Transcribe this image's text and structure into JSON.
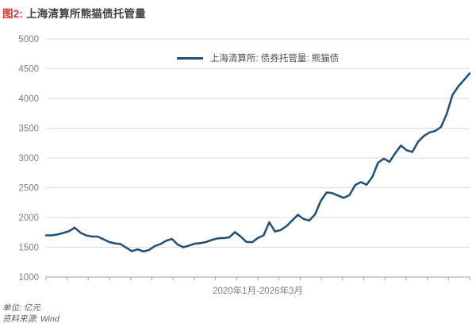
{
  "title": {
    "prefix": "图2:",
    "text": "上海清算所熊猫债托管量"
  },
  "legend": {
    "label": "上海清算所: 债券托管量: 熊猫债"
  },
  "footer": {
    "unit": "单位: 亿元",
    "source": "资料来源: Wind"
  },
  "colors": {
    "line": "#1F4E79",
    "title_accent": "#CD3C32",
    "title_text": "#404040",
    "grid": "#DBDBDB",
    "axis": "#9E9E9E",
    "tick_label": "#7F7F7F",
    "footer_text": "#595959"
  },
  "chart_data": {
    "type": "line",
    "title": "上海清算所熊猫债托管量",
    "series_name": "上海清算所: 债券托管量: 熊猫债",
    "x_range_label": "2020年1月-2026年3月",
    "unit": "亿元",
    "ylim": [
      1000,
      5000
    ],
    "yticks": [
      1000,
      1500,
      2000,
      2500,
      3000,
      3500,
      4000,
      4500,
      5000
    ],
    "grid": true,
    "legend_position": "top-center",
    "x_tick_count": 21,
    "months": [
      "2020-01",
      "2020-02",
      "2020-03",
      "2020-04",
      "2020-05",
      "2020-06",
      "2020-07",
      "2020-08",
      "2020-09",
      "2020-10",
      "2020-11",
      "2020-12",
      "2021-01",
      "2021-02",
      "2021-03",
      "2021-04",
      "2021-05",
      "2021-06",
      "2021-07",
      "2021-08",
      "2021-09",
      "2021-10",
      "2021-11",
      "2021-12",
      "2022-01",
      "2022-02",
      "2022-03",
      "2022-04",
      "2022-05",
      "2022-06",
      "2022-07",
      "2022-08",
      "2022-09",
      "2022-10",
      "2022-11",
      "2022-12",
      "2023-01",
      "2023-02",
      "2023-03",
      "2023-04",
      "2023-05",
      "2023-06",
      "2023-07",
      "2023-08",
      "2023-09",
      "2023-10",
      "2023-11",
      "2023-12",
      "2024-01",
      "2024-02",
      "2024-03",
      "2024-04",
      "2024-05",
      "2024-06",
      "2024-07",
      "2024-08",
      "2024-09",
      "2024-10",
      "2024-11",
      "2024-12",
      "2025-01",
      "2025-02",
      "2025-03",
      "2025-04",
      "2025-05",
      "2025-06",
      "2025-07",
      "2025-08",
      "2025-09",
      "2025-10",
      "2025-11",
      "2025-12",
      "2026-01",
      "2026-02",
      "2026-03"
    ],
    "values": [
      1700,
      1700,
      1715,
      1740,
      1770,
      1830,
      1745,
      1700,
      1680,
      1680,
      1635,
      1590,
      1565,
      1555,
      1495,
      1435,
      1465,
      1430,
      1455,
      1520,
      1555,
      1610,
      1640,
      1545,
      1500,
      1530,
      1560,
      1570,
      1590,
      1625,
      1650,
      1655,
      1665,
      1755,
      1680,
      1590,
      1585,
      1655,
      1700,
      1920,
      1765,
      1790,
      1855,
      1950,
      2045,
      1975,
      1950,
      2055,
      2280,
      2420,
      2410,
      2370,
      2330,
      2375,
      2545,
      2595,
      2550,
      2680,
      2920,
      2990,
      2935,
      3080,
      3210,
      3130,
      3100,
      3275,
      3370,
      3430,
      3455,
      3520,
      3740,
      4060,
      4200,
      4310,
      4420
    ]
  }
}
